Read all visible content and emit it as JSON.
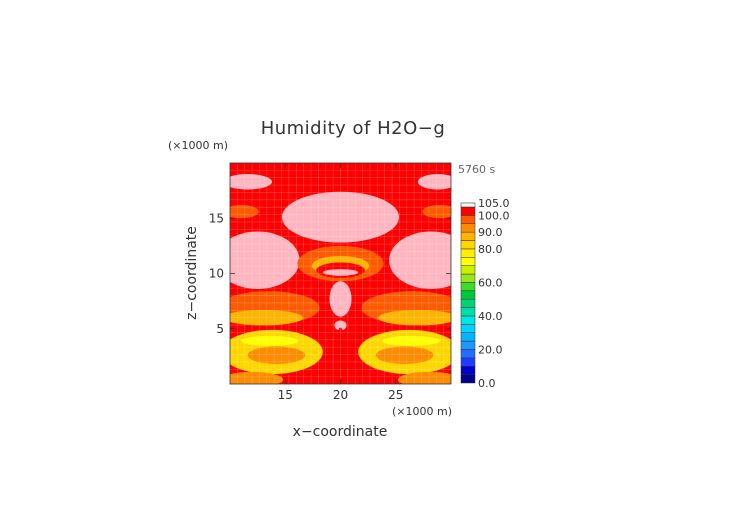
{
  "chart_data": {
    "type": "heatmap",
    "title": "Humidity of H2O−g",
    "time_label": "5760 s",
    "xlabel": "x−coordinate",
    "ylabel": "z−coordinate",
    "x_unit": "(×1000 m)",
    "y_unit": "(×1000 m)",
    "xlim": [
      10,
      30
    ],
    "ylim": [
      0,
      20
    ],
    "x_ticks": [
      15,
      20,
      25
    ],
    "y_ticks": [
      5,
      10,
      15
    ],
    "x_tick_labels": [
      "15",
      "20",
      "25"
    ],
    "y_tick_labels": [
      "5",
      "10",
      "15"
    ],
    "colorbar": {
      "levels": [
        0,
        5,
        10,
        15,
        20,
        25,
        30,
        35,
        40,
        45,
        50,
        55,
        60,
        65,
        70,
        75,
        80,
        85,
        90,
        95,
        100,
        105
      ],
      "colors": [
        "#00008b",
        "#0000cd",
        "#1e3cff",
        "#1e6eff",
        "#1e96ff",
        "#00b4ff",
        "#00d2ff",
        "#00e6e6",
        "#00dcaa",
        "#00d278",
        "#00c83c",
        "#3cdc28",
        "#96e61e",
        "#c8f000",
        "#ffff00",
        "#fff000",
        "#ffd700",
        "#ffb400",
        "#ff8c00",
        "#ff5a00",
        "#ff0000",
        "#ffb6c1"
      ],
      "tick_labels": [
        "0.0",
        "20.0",
        "40.0",
        "60.0",
        "80.0",
        "90.0",
        "100.0",
        "105.0"
      ],
      "tick_values": [
        0,
        20,
        40,
        60,
        80,
        90,
        100,
        105
      ]
    },
    "background_level": 100,
    "regions": [
      {
        "name": "top-left-cap",
        "level": 105,
        "shape": "ellipse",
        "cx": 11.6,
        "cz": 18.3,
        "rx": 2.2,
        "rz": 0.7
      },
      {
        "name": "top-right-cap",
        "level": 105,
        "shape": "ellipse",
        "cx": 28.8,
        "cz": 18.3,
        "rx": 1.8,
        "rz": 0.7
      },
      {
        "name": "left-band-orange",
        "level": 95,
        "shape": "ellipse",
        "cx": 11,
        "cz": 15.6,
        "rx": 1.6,
        "rz": 0.6
      },
      {
        "name": "right-band-orange",
        "level": 95,
        "shape": "ellipse",
        "cx": 29,
        "cz": 15.6,
        "rx": 1.6,
        "rz": 0.6
      },
      {
        "name": "upper-center-pink",
        "level": 105,
        "shape": "ellipse",
        "cx": 20,
        "cz": 15.1,
        "rx": 5.3,
        "rz": 2.3
      },
      {
        "name": "left-lobe-pink",
        "level": 105,
        "shape": "ellipse",
        "cx": 12.5,
        "cz": 11.2,
        "rx": 3.8,
        "rz": 2.6
      },
      {
        "name": "right-lobe-pink",
        "level": 105,
        "shape": "ellipse",
        "cx": 28.2,
        "cz": 11.2,
        "rx": 3.8,
        "rz": 2.6
      },
      {
        "name": "center-arc-orange",
        "level": 95,
        "shape": "ellipse",
        "cx": 20,
        "cz": 10.9,
        "rx": 3.9,
        "rz": 1.6
      },
      {
        "name": "center-arc-yellow",
        "level": 85,
        "shape": "ellipse",
        "cx": 20,
        "cz": 10.7,
        "rx": 2.6,
        "rz": 0.9
      },
      {
        "name": "center-arc-red",
        "level": 100,
        "shape": "ellipse",
        "cx": 20,
        "cz": 10.3,
        "rx": 2.2,
        "rz": 0.7
      },
      {
        "name": "center-arc-pink",
        "level": 105,
        "shape": "ellipse",
        "cx": 20,
        "cz": 10.1,
        "rx": 1.6,
        "rz": 0.3
      },
      {
        "name": "center-column-pink",
        "level": 105,
        "shape": "ellipse",
        "cx": 20,
        "cz": 7.7,
        "rx": 1.0,
        "rz": 1.6
      },
      {
        "name": "center-dot-pink",
        "level": 105,
        "shape": "ellipse",
        "cx": 20,
        "cz": 5.3,
        "rx": 0.55,
        "rz": 0.45
      },
      {
        "name": "left-wing-orange",
        "level": 95,
        "shape": "ellipse",
        "cx": 13.5,
        "cz": 6.9,
        "rx": 4.6,
        "rz": 1.5
      },
      {
        "name": "right-wing-orange",
        "level": 95,
        "shape": "ellipse",
        "cx": 26.5,
        "cz": 6.9,
        "rx": 4.6,
        "rz": 1.5
      },
      {
        "name": "left-wing-yellow",
        "level": 85,
        "shape": "ellipse",
        "cx": 13,
        "cz": 6.0,
        "rx": 3.6,
        "rz": 0.7
      },
      {
        "name": "right-wing-yellow",
        "level": 85,
        "shape": "ellipse",
        "cx": 27,
        "cz": 6.0,
        "rx": 3.6,
        "rz": 0.7
      },
      {
        "name": "left-low-yellow",
        "level": 80,
        "shape": "ellipse",
        "cx": 13.8,
        "cz": 2.9,
        "rx": 4.6,
        "rz": 2.0
      },
      {
        "name": "right-low-yellow",
        "level": 80,
        "shape": "ellipse",
        "cx": 26.2,
        "cz": 2.9,
        "rx": 4.6,
        "rz": 2.0
      },
      {
        "name": "left-green-patch",
        "level": 70,
        "shape": "ellipse",
        "cx": 13.6,
        "cz": 3.9,
        "rx": 2.6,
        "rz": 0.45
      },
      {
        "name": "right-green-patch",
        "level": 70,
        "shape": "ellipse",
        "cx": 26.4,
        "cz": 3.9,
        "rx": 2.6,
        "rz": 0.45
      },
      {
        "name": "left-low-orange",
        "level": 90,
        "shape": "ellipse",
        "cx": 14.2,
        "cz": 2.6,
        "rx": 2.6,
        "rz": 0.8
      },
      {
        "name": "right-low-orange",
        "level": 90,
        "shape": "ellipse",
        "cx": 25.8,
        "cz": 2.6,
        "rx": 2.6,
        "rz": 0.8
      },
      {
        "name": "bottom-left-orange",
        "level": 90,
        "shape": "ellipse",
        "cx": 12,
        "cz": 0.4,
        "rx": 2.8,
        "rz": 0.7
      },
      {
        "name": "bottom-right-orange",
        "level": 90,
        "shape": "ellipse",
        "cx": 28,
        "cz": 0.4,
        "rx": 2.8,
        "rz": 0.7
      },
      {
        "name": "center-stem-red",
        "level": 100,
        "shape": "ellipse",
        "cx": 20,
        "cz": 2.5,
        "rx": 0.5,
        "rz": 2.6
      }
    ]
  }
}
